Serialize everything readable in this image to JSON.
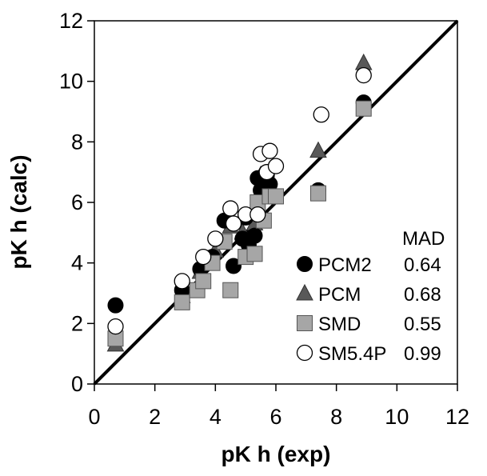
{
  "chart_data": {
    "type": "scatter",
    "xlabel": "pK h (exp)",
    "ylabel": "pK h (calc)",
    "xlim": [
      0,
      12
    ],
    "ylim": [
      0,
      12
    ],
    "x_ticks": [
      "0",
      "2",
      "4",
      "6",
      "8",
      "10",
      "12"
    ],
    "y_ticks": [
      "0",
      "2",
      "4",
      "6",
      "8",
      "10",
      "12"
    ],
    "grid": false,
    "legend_position": "bottom-right",
    "legend_header": "MAD",
    "reference_line": {
      "from": [
        0,
        0
      ],
      "to": [
        12,
        12
      ]
    },
    "series": [
      {
        "name": "PCM2",
        "mad": "0.64",
        "marker": "circle",
        "color": "#000000",
        "points": [
          [
            0.7,
            2.6
          ],
          [
            2.9,
            3.1
          ],
          [
            3.5,
            3.8
          ],
          [
            3.9,
            4.2
          ],
          [
            4.3,
            5.4
          ],
          [
            4.6,
            3.9
          ],
          [
            4.9,
            4.8
          ],
          [
            5.0,
            5.5
          ],
          [
            5.1,
            4.6
          ],
          [
            5.3,
            4.9
          ],
          [
            5.4,
            6.8
          ],
          [
            5.5,
            6.4
          ],
          [
            5.7,
            6.9
          ],
          [
            5.8,
            6.6
          ],
          [
            7.4,
            6.4
          ],
          [
            8.9,
            9.3
          ]
        ]
      },
      {
        "name": "PCM",
        "mad": "0.68",
        "marker": "triangle",
        "color": "#595959",
        "points": [
          [
            0.7,
            1.3
          ],
          [
            2.9,
            2.9
          ],
          [
            3.5,
            3.7
          ],
          [
            4.0,
            4.4
          ],
          [
            4.5,
            5.2
          ],
          [
            4.9,
            5.0
          ],
          [
            5.3,
            5.3
          ],
          [
            5.5,
            6.9
          ],
          [
            5.7,
            6.7
          ],
          [
            5.8,
            6.5
          ],
          [
            7.4,
            7.7
          ],
          [
            8.9,
            10.6
          ]
        ]
      },
      {
        "name": "SMD",
        "mad": "0.55",
        "marker": "square",
        "color": "#a6a6a6",
        "points": [
          [
            0.7,
            1.5
          ],
          [
            2.9,
            2.7
          ],
          [
            3.4,
            3.1
          ],
          [
            3.6,
            3.4
          ],
          [
            3.9,
            4.0
          ],
          [
            4.3,
            4.7
          ],
          [
            4.5,
            3.1
          ],
          [
            5.0,
            4.2
          ],
          [
            5.3,
            4.3
          ],
          [
            5.4,
            6.0
          ],
          [
            5.6,
            5.4
          ],
          [
            5.8,
            6.2
          ],
          [
            6.0,
            6.2
          ],
          [
            7.4,
            6.3
          ],
          [
            8.9,
            9.1
          ]
        ]
      },
      {
        "name": "SM5.4P",
        "mad": "0.99",
        "marker": "circle-open",
        "color": "#ffffff",
        "points": [
          [
            0.7,
            1.9
          ],
          [
            2.9,
            3.4
          ],
          [
            3.6,
            4.2
          ],
          [
            4.0,
            4.8
          ],
          [
            4.5,
            5.8
          ],
          [
            4.6,
            5.3
          ],
          [
            5.0,
            5.6
          ],
          [
            5.4,
            5.6
          ],
          [
            5.5,
            7.6
          ],
          [
            5.7,
            7.0
          ],
          [
            5.8,
            7.7
          ],
          [
            6.0,
            7.2
          ],
          [
            7.5,
            8.9
          ],
          [
            8.9,
            10.2
          ]
        ]
      }
    ]
  }
}
